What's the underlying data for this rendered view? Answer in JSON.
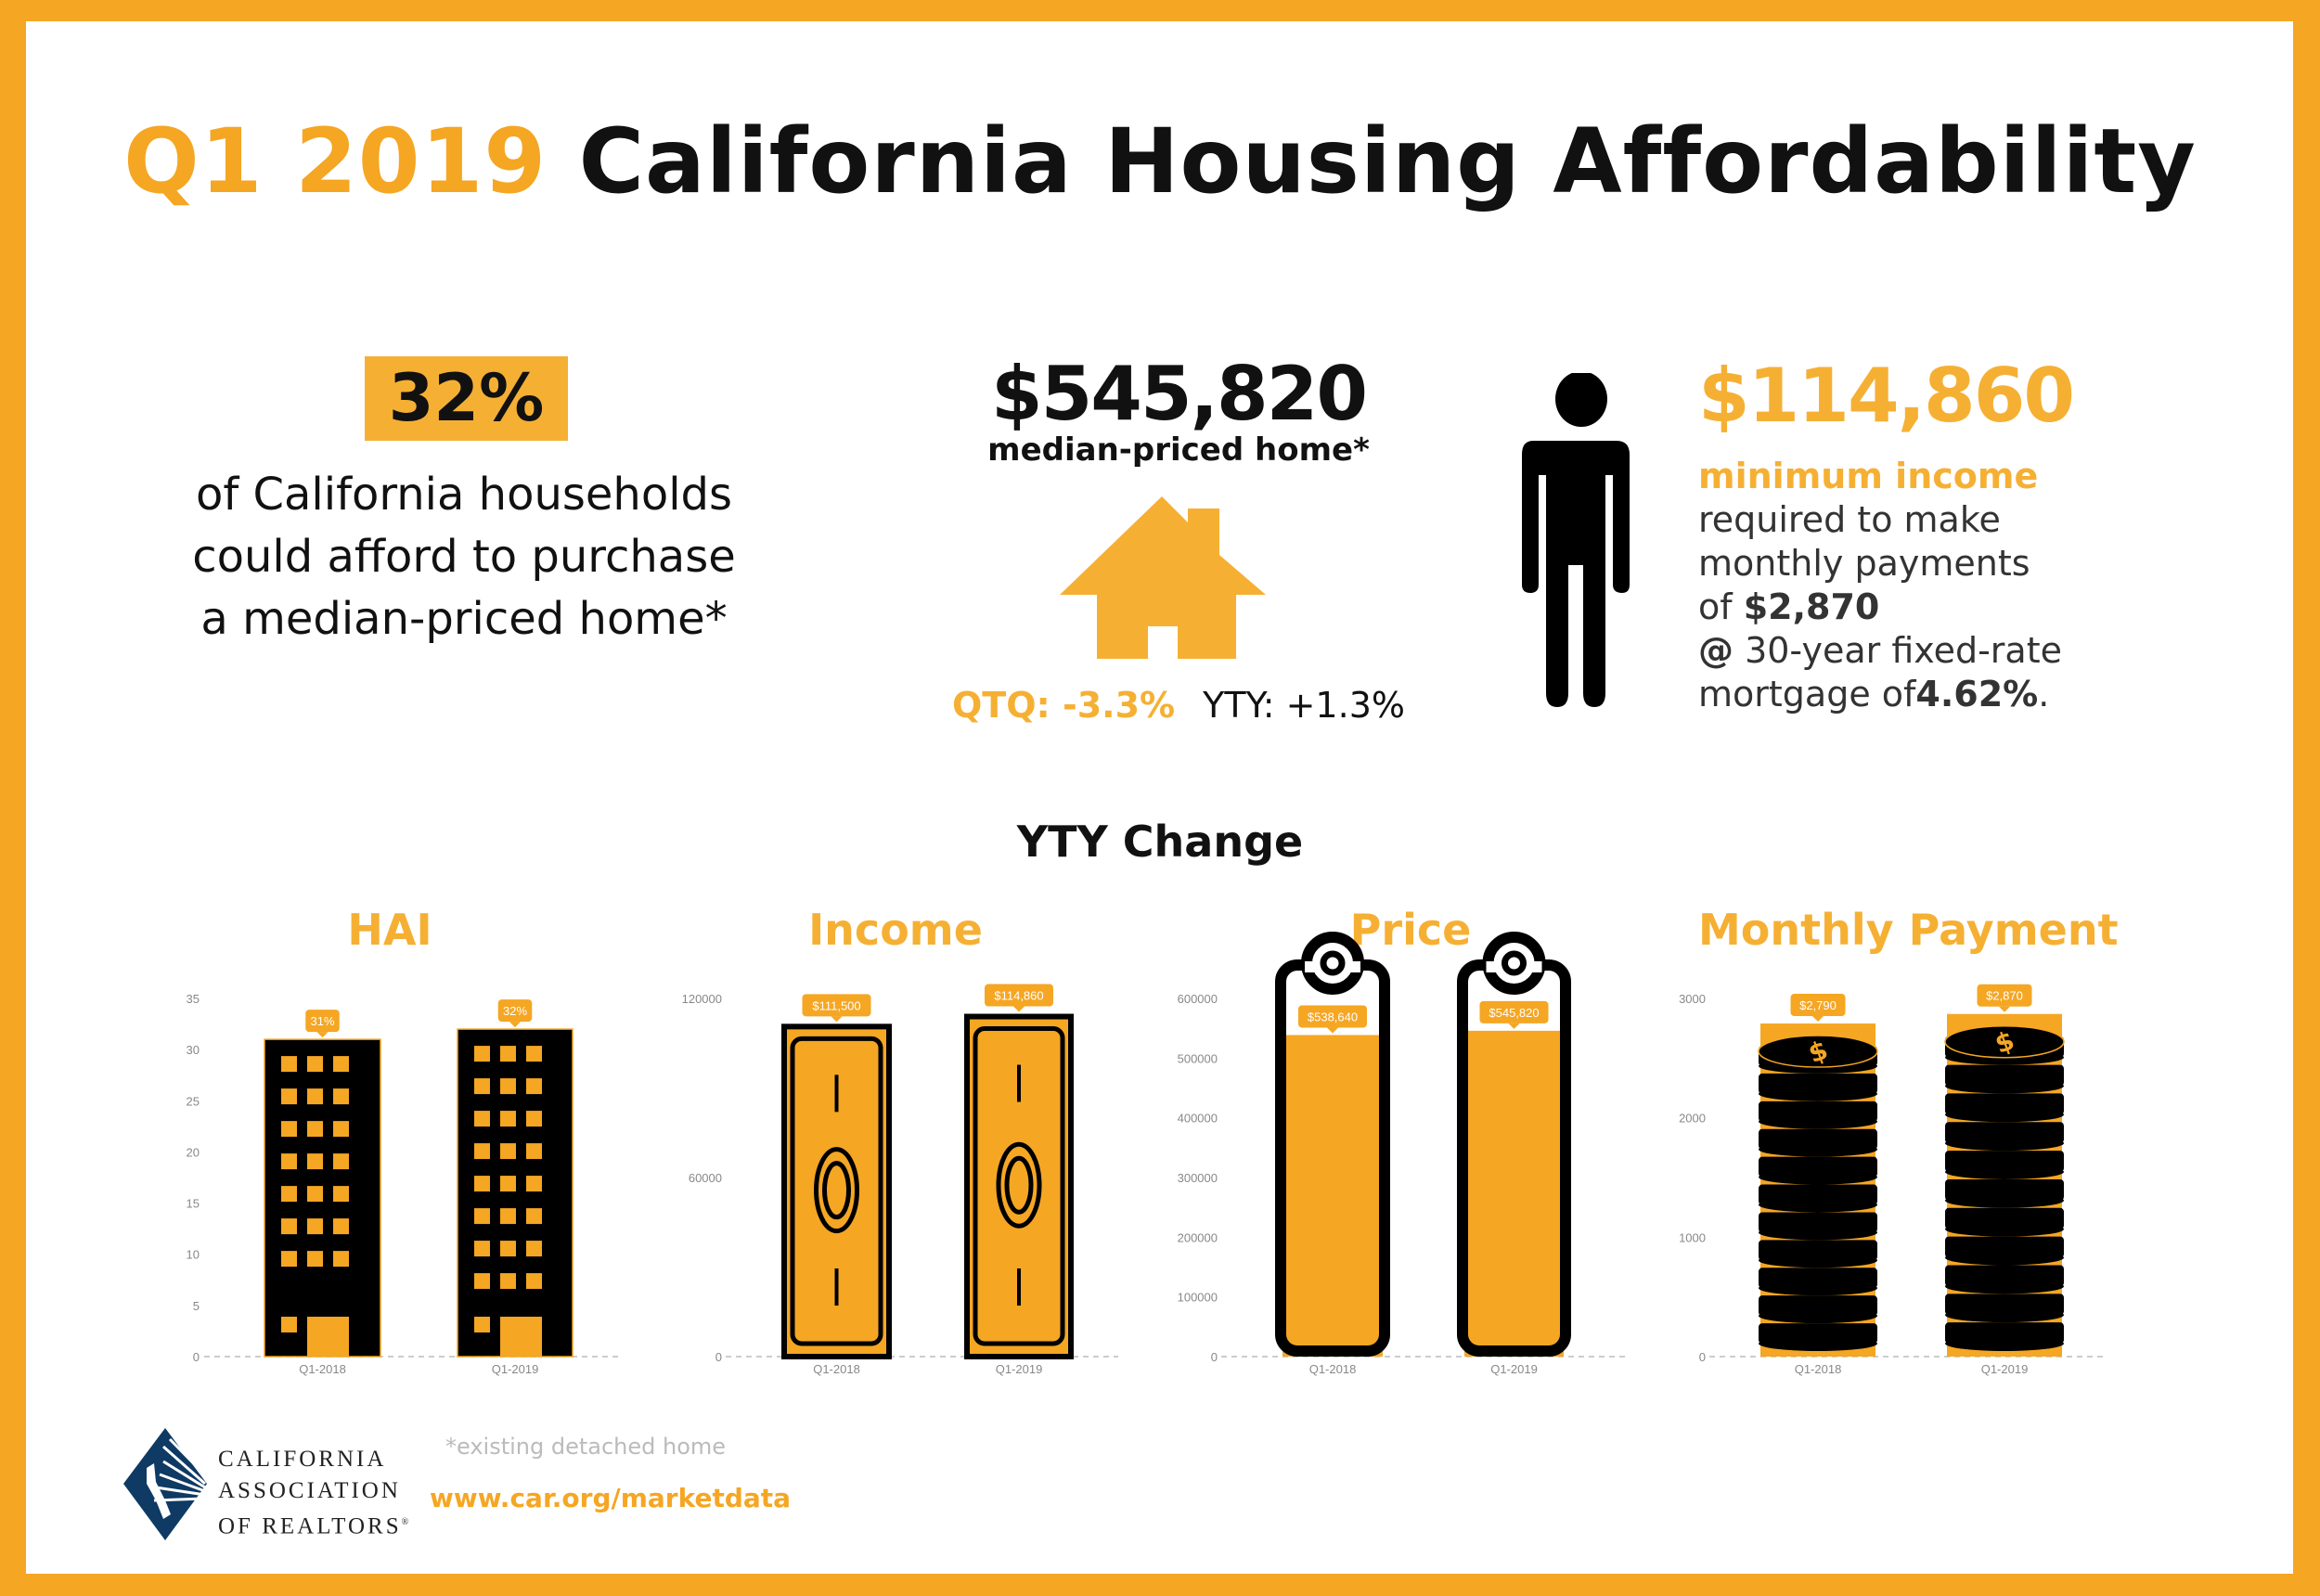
{
  "title": {
    "period": "Q1 2019",
    "main": "California Housing Affordability"
  },
  "colors": {
    "accent": "#F5A623",
    "accent_light": "#F5B034",
    "dark": "#000000",
    "logo_blue": "#0E3A63"
  },
  "hai": {
    "value": "32%",
    "description": "of California households could afford to purchase a median-priced home*"
  },
  "median_price": {
    "value": "$545,820",
    "label": "median-priced home*",
    "qtq": "QTQ: -3.3%",
    "yty": "YTY: +1.3%",
    "icon": "house-icon"
  },
  "min_income": {
    "value": "$114,860",
    "label": "minimum income",
    "line1": "required to make",
    "line2": "monthly payments",
    "line3_prefix": "of ",
    "payment": "$2,870",
    "line4_at": "@",
    "line4": " 30-year fixed-rate",
    "line5_prefix": "mortgage of",
    "rate": "4.62%",
    "line5_suffix": ".",
    "icon": "person-icon"
  },
  "section_title": "YTY Change",
  "footnote": "*existing detached home",
  "url": "www.car.org/marketdata",
  "logo": {
    "line1": "CALIFORNIA",
    "line2": "ASSOCIATION",
    "line3": "OF REALTORS",
    "mark": "®"
  },
  "chart_data": [
    {
      "type": "bar",
      "title": "HAI",
      "pictogram": "building",
      "categories": [
        "Q1-2018",
        "Q1-2019"
      ],
      "values": [
        31,
        32
      ],
      "data_labels": [
        "31%",
        "32%"
      ],
      "yticks": [
        0,
        5,
        10,
        15,
        20,
        25,
        30,
        35
      ],
      "ylim": [
        0,
        35
      ],
      "xlabel": "",
      "ylabel": ""
    },
    {
      "type": "bar",
      "title": "Income",
      "pictogram": "banknote",
      "categories": [
        "Q1-2018",
        "Q1-2019"
      ],
      "values": [
        111500,
        114860
      ],
      "data_labels": [
        "$111,500",
        "$114,860"
      ],
      "yticks": [
        0,
        60000,
        120000
      ],
      "ylim": [
        0,
        120000
      ],
      "xlabel": "",
      "ylabel": ""
    },
    {
      "type": "bar",
      "title": "Price",
      "pictogram": "price-tag",
      "categories": [
        "Q1-2018",
        "Q1-2019"
      ],
      "values": [
        538640,
        545820
      ],
      "data_labels": [
        "$538,640",
        "$545,820"
      ],
      "yticks": [
        0,
        100000,
        200000,
        300000,
        400000,
        500000,
        600000
      ],
      "ylim": [
        0,
        600000
      ],
      "xlabel": "",
      "ylabel": ""
    },
    {
      "type": "bar",
      "title": "Monthly Payment",
      "pictogram": "coin-stack",
      "categories": [
        "Q1-2018",
        "Q1-2019"
      ],
      "values": [
        2790,
        2870
      ],
      "data_labels": [
        "$2,790",
        "$2,870"
      ],
      "yticks": [
        0,
        1000,
        2000,
        3000
      ],
      "ylim": [
        0,
        3000
      ],
      "xlabel": "",
      "ylabel": ""
    }
  ]
}
